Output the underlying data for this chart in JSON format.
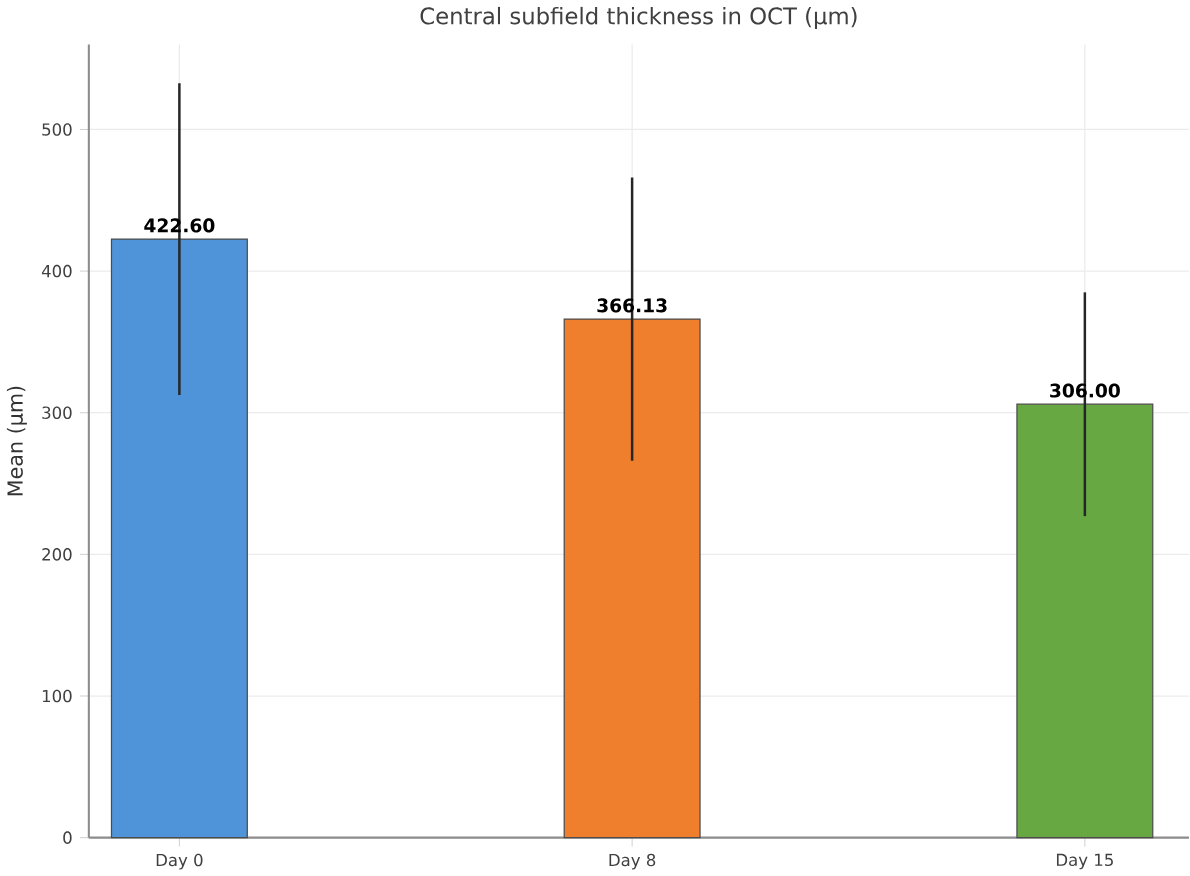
{
  "chart_data": {
    "type": "bar",
    "title": "Central subfield thickness in OCT (µm)",
    "ylabel": "Mean (µm)",
    "categories": [
      "Day 0",
      "Day 8",
      "Day 15"
    ],
    "values": [
      422.6,
      366.13,
      306.0
    ],
    "colors": [
      "#4f93d8",
      "#ef7f2d",
      "#67a843"
    ],
    "errors": [
      110,
      100,
      79
    ],
    "data_labels": true,
    "value_labels": [
      "422.60",
      "366.13",
      "306.00"
    ],
    "ylim": [
      0,
      560
    ],
    "yticks": [
      0,
      100,
      200,
      300,
      400,
      500
    ],
    "grid": true
  }
}
